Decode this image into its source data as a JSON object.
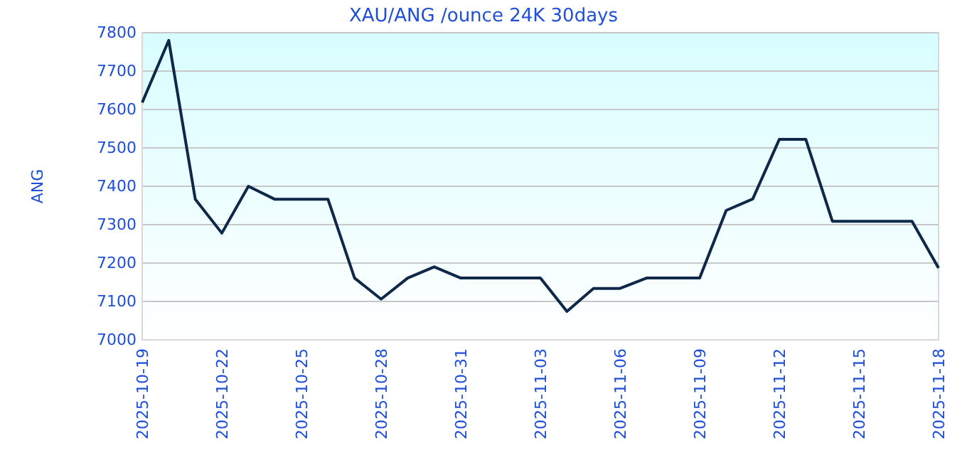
{
  "chart_data": {
    "type": "line",
    "title": "XAU/ANG /ounce 24K 30days",
    "ylabel": "ANG",
    "x": [
      "2025-10-19",
      "2025-10-20",
      "2025-10-21",
      "2025-10-22",
      "2025-10-23",
      "2025-10-24",
      "2025-10-25",
      "2025-10-26",
      "2025-10-27",
      "2025-10-28",
      "2025-10-29",
      "2025-10-30",
      "2025-10-31",
      "2025-11-01",
      "2025-11-02",
      "2025-11-03",
      "2025-11-04",
      "2025-11-05",
      "2025-11-06",
      "2025-11-07",
      "2025-11-08",
      "2025-11-09",
      "2025-11-10",
      "2025-11-11",
      "2025-11-12",
      "2025-11-13",
      "2025-11-14",
      "2025-11-15",
      "2025-11-16",
      "2025-11-17",
      "2025-11-18"
    ],
    "series": [
      {
        "color": "#0f2748",
        "values": [
          7618,
          7780,
          7366,
          7278,
          7400,
          7366,
          7366,
          7366,
          7161,
          7106,
          7161,
          7190,
          7161,
          7161,
          7161,
          7161,
          7074,
          7134,
          7134,
          7161,
          7161,
          7161,
          7337,
          7367,
          7522,
          7522,
          7309,
          7309,
          7309,
          7309,
          7187
        ]
      }
    ],
    "xlim": [
      "2025-10-19",
      "2025-11-18"
    ],
    "xticks": [
      "2025-10-19",
      "2025-10-22",
      "2025-10-25",
      "2025-10-28",
      "2025-10-31",
      "2025-11-03",
      "2025-11-06",
      "2025-11-09",
      "2025-11-12",
      "2025-11-15",
      "2025-11-18"
    ],
    "ylim": [
      7000,
      7800
    ],
    "yticks": [
      7000,
      7100,
      7200,
      7300,
      7400,
      7500,
      7600,
      7700,
      7800
    ],
    "grid": "y",
    "marker": "none",
    "line_style": "solid"
  }
}
